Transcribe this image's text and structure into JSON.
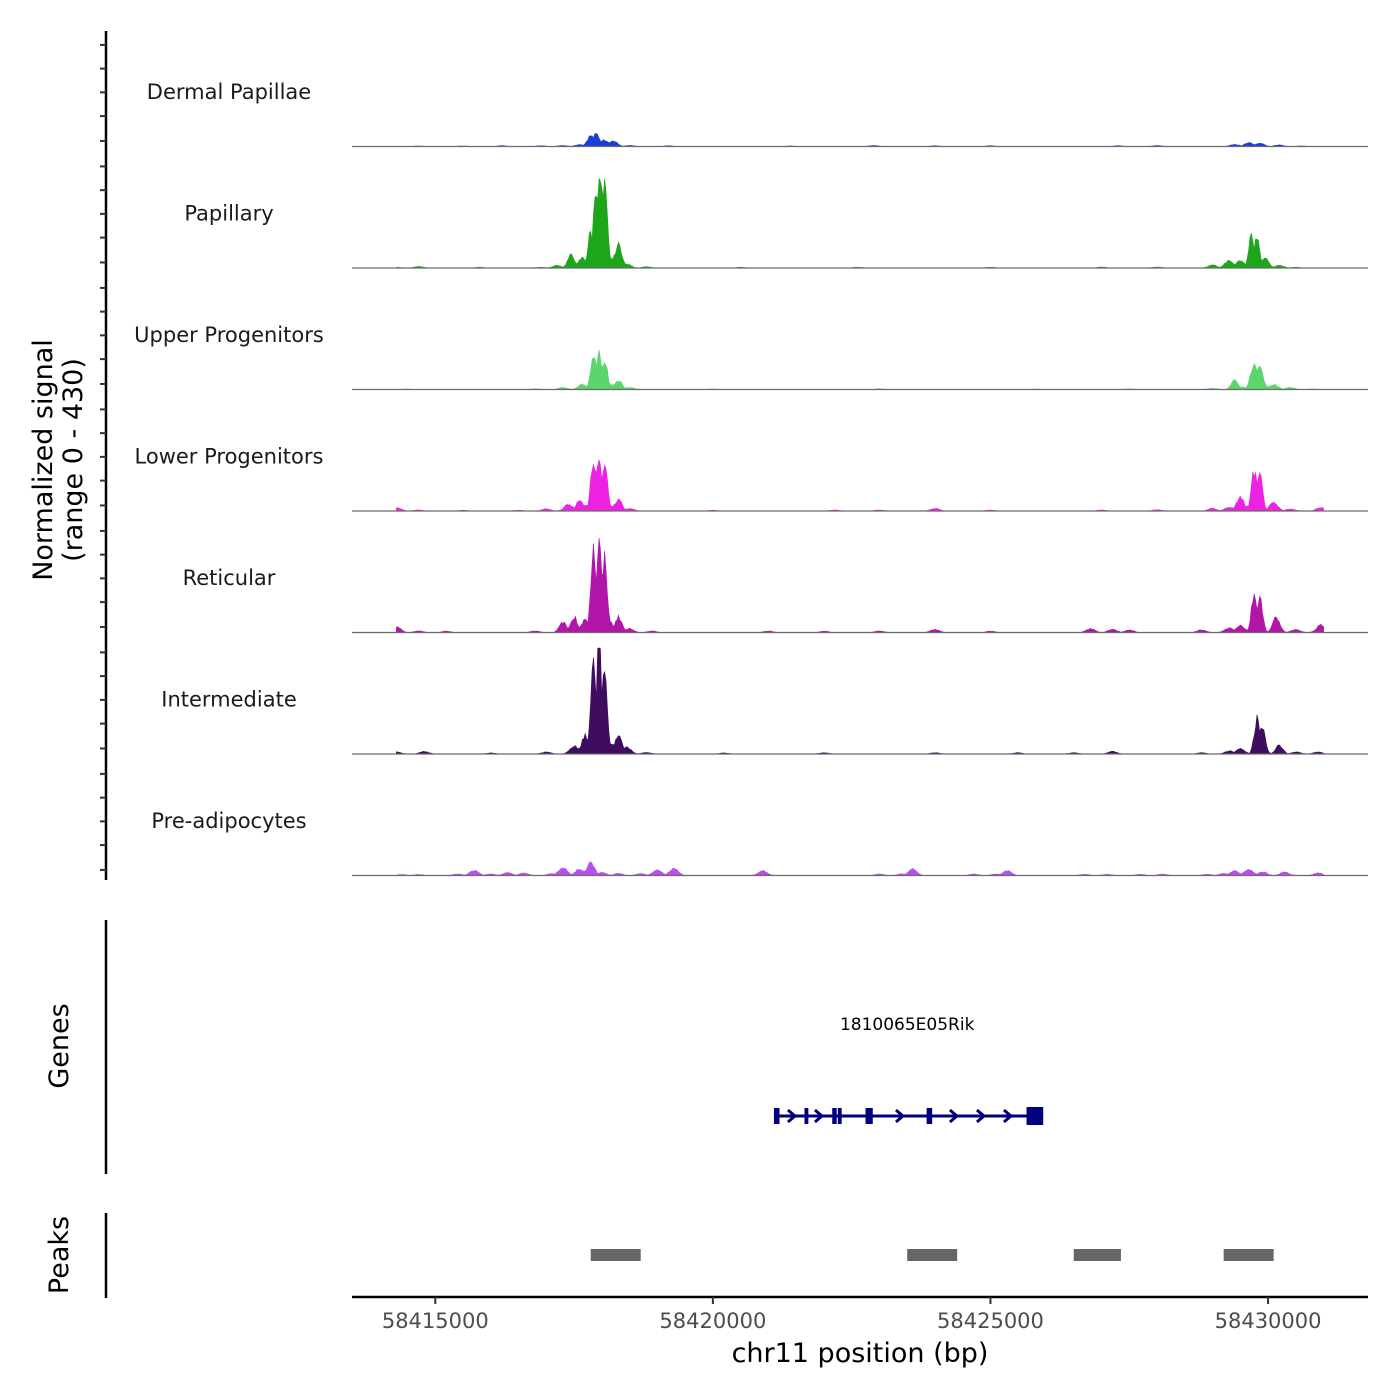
{
  "chart_data": {
    "type": "area",
    "title": "",
    "xlabel": "chr11 position (bp)",
    "ylabel": "Normalized signal\n(range 0 - 430)",
    "ylabel_lines": [
      "Normalized signal",
      "(range 0 - 430)"
    ],
    "ylim": [
      0,
      430
    ],
    "xlim": [
      58413500,
      58431800
    ],
    "x_ticks": [
      58415000,
      58420000,
      58425000,
      58430000
    ],
    "x_tick_labels": [
      "58415000",
      "58420000",
      "58425000",
      "58430000"
    ],
    "grid": false,
    "series": [
      {
        "name": "Dermal Papillae",
        "color": "#1a3fd6",
        "peaks": [
          [
            58414700,
            2
          ],
          [
            58415500,
            2
          ],
          [
            58416200,
            3
          ],
          [
            58416900,
            3
          ],
          [
            58417300,
            4
          ],
          [
            58417600,
            8
          ],
          [
            58417800,
            42
          ],
          [
            58417900,
            48
          ],
          [
            58418050,
            26
          ],
          [
            58418200,
            22
          ],
          [
            58418500,
            4
          ],
          [
            58419200,
            3
          ],
          [
            58421400,
            2
          ],
          [
            58422900,
            4
          ],
          [
            58424000,
            3
          ],
          [
            58425000,
            3
          ],
          [
            58427300,
            3
          ],
          [
            58428000,
            4
          ],
          [
            58429400,
            8
          ],
          [
            58429650,
            15
          ],
          [
            58429850,
            14
          ],
          [
            58430200,
            6
          ],
          [
            58430600,
            2
          ]
        ]
      },
      {
        "name": "Papillary",
        "color": "#1ea61a",
        "peaks": [
          [
            58414300,
            3
          ],
          [
            58414700,
            6
          ],
          [
            58415800,
            3
          ],
          [
            58416900,
            3
          ],
          [
            58417200,
            10
          ],
          [
            58417450,
            50
          ],
          [
            58417650,
            40
          ],
          [
            58417800,
            140
          ],
          [
            58417900,
            330
          ],
          [
            58417970,
            345
          ],
          [
            58418050,
            310
          ],
          [
            58418170,
            40
          ],
          [
            58418300,
            90
          ],
          [
            58418450,
            15
          ],
          [
            58418800,
            5
          ],
          [
            58420500,
            3
          ],
          [
            58422600,
            3
          ],
          [
            58425000,
            3
          ],
          [
            58427000,
            4
          ],
          [
            58428000,
            4
          ],
          [
            58429000,
            12
          ],
          [
            58429300,
            28
          ],
          [
            58429500,
            30
          ],
          [
            58429700,
            120
          ],
          [
            58429800,
            120
          ],
          [
            58429950,
            40
          ],
          [
            58430200,
            10
          ],
          [
            58430500,
            3
          ]
        ]
      },
      {
        "name": "Upper Progenitors",
        "color": "#5bd66c",
        "peaks": [
          [
            58414500,
            2
          ],
          [
            58416800,
            3
          ],
          [
            58417300,
            8
          ],
          [
            58417650,
            20
          ],
          [
            58417850,
            130
          ],
          [
            58417950,
            140
          ],
          [
            58418050,
            120
          ],
          [
            58418150,
            20
          ],
          [
            58418300,
            35
          ],
          [
            58418500,
            8
          ],
          [
            58420000,
            2
          ],
          [
            58423000,
            3
          ],
          [
            58425800,
            2
          ],
          [
            58427500,
            3
          ],
          [
            58429000,
            5
          ],
          [
            58429400,
            35
          ],
          [
            58429550,
            10
          ],
          [
            58429750,
            95
          ],
          [
            58429850,
            85
          ],
          [
            58430100,
            20
          ],
          [
            58430400,
            8
          ],
          [
            58430800,
            2
          ]
        ]
      },
      {
        "name": "Lower Progenitors",
        "color": "#ee22e3",
        "peaks": [
          [
            58414300,
            14
          ],
          [
            58414700,
            4
          ],
          [
            58415500,
            3
          ],
          [
            58416500,
            3
          ],
          [
            58417000,
            8
          ],
          [
            58417400,
            25
          ],
          [
            58417600,
            40
          ],
          [
            58417750,
            25
          ],
          [
            58417850,
            210
          ],
          [
            58417950,
            220
          ],
          [
            58418050,
            180
          ],
          [
            58418150,
            20
          ],
          [
            58418300,
            45
          ],
          [
            58418500,
            10
          ],
          [
            58420000,
            3
          ],
          [
            58422200,
            4
          ],
          [
            58423000,
            4
          ],
          [
            58424000,
            10
          ],
          [
            58425000,
            4
          ],
          [
            58427000,
            4
          ],
          [
            58428000,
            5
          ],
          [
            58429000,
            10
          ],
          [
            58429300,
            15
          ],
          [
            58429500,
            55
          ],
          [
            58429650,
            20
          ],
          [
            58429750,
            155
          ],
          [
            58429850,
            140
          ],
          [
            58430100,
            30
          ],
          [
            58430400,
            8
          ],
          [
            58430950,
            14
          ]
        ]
      },
      {
        "name": "Reticular",
        "color": "#b116a8",
        "peaks": [
          [
            58414300,
            22
          ],
          [
            58414700,
            6
          ],
          [
            58415200,
            5
          ],
          [
            58416800,
            6
          ],
          [
            58417300,
            40
          ],
          [
            58417500,
            60
          ],
          [
            58417700,
            55
          ],
          [
            58417850,
            320
          ],
          [
            58417950,
            340
          ],
          [
            58418050,
            280
          ],
          [
            58418150,
            40
          ],
          [
            58418300,
            60
          ],
          [
            58418500,
            15
          ],
          [
            58418900,
            6
          ],
          [
            58421000,
            6
          ],
          [
            58422000,
            5
          ],
          [
            58423000,
            6
          ],
          [
            58424000,
            12
          ],
          [
            58425000,
            5
          ],
          [
            58426800,
            15
          ],
          [
            58427200,
            12
          ],
          [
            58427500,
            10
          ],
          [
            58428800,
            10
          ],
          [
            58429300,
            18
          ],
          [
            58429500,
            28
          ],
          [
            58429750,
            150
          ],
          [
            58429850,
            145
          ],
          [
            58430150,
            60
          ],
          [
            58430500,
            12
          ],
          [
            58430950,
            28
          ]
        ]
      },
      {
        "name": "Intermediate",
        "color": "#3f0d5e",
        "peaks": [
          [
            58414300,
            8
          ],
          [
            58414800,
            10
          ],
          [
            58416000,
            4
          ],
          [
            58417000,
            8
          ],
          [
            58417500,
            30
          ],
          [
            58417700,
            70
          ],
          [
            58417850,
            380
          ],
          [
            58417950,
            410
          ],
          [
            58418050,
            320
          ],
          [
            58418200,
            40
          ],
          [
            58418300,
            70
          ],
          [
            58418450,
            25
          ],
          [
            58418800,
            6
          ],
          [
            58420200,
            4
          ],
          [
            58422000,
            5
          ],
          [
            58424000,
            5
          ],
          [
            58425500,
            5
          ],
          [
            58426500,
            5
          ],
          [
            58427200,
            10
          ],
          [
            58428800,
            5
          ],
          [
            58429300,
            12
          ],
          [
            58429500,
            20
          ],
          [
            58429800,
            135
          ],
          [
            58429900,
            110
          ],
          [
            58430200,
            35
          ],
          [
            58430500,
            8
          ],
          [
            58430900,
            8
          ]
        ]
      },
      {
        "name": "Pre-adipocytes",
        "color": "#b94ef0",
        "peaks": [
          [
            58414400,
            4
          ],
          [
            58414700,
            4
          ],
          [
            58415400,
            6
          ],
          [
            58415700,
            20
          ],
          [
            58416000,
            6
          ],
          [
            58416300,
            12
          ],
          [
            58416600,
            10
          ],
          [
            58417100,
            8
          ],
          [
            58417300,
            30
          ],
          [
            58417600,
            25
          ],
          [
            58417800,
            55
          ],
          [
            58418000,
            12
          ],
          [
            58418300,
            8
          ],
          [
            58418700,
            8
          ],
          [
            58419000,
            22
          ],
          [
            58419300,
            28
          ],
          [
            58420900,
            18
          ],
          [
            58423000,
            6
          ],
          [
            58423400,
            6
          ],
          [
            58423600,
            25
          ],
          [
            58424700,
            6
          ],
          [
            58425100,
            6
          ],
          [
            58425300,
            18
          ],
          [
            58426700,
            5
          ],
          [
            58427100,
            5
          ],
          [
            58427700,
            5
          ],
          [
            58428100,
            5
          ],
          [
            58428900,
            5
          ],
          [
            58429200,
            8
          ],
          [
            58429400,
            18
          ],
          [
            58429650,
            25
          ],
          [
            58429900,
            15
          ],
          [
            58430300,
            14
          ],
          [
            58430900,
            10
          ]
        ]
      }
    ],
    "genes": {
      "title": "Genes",
      "color": "#000080",
      "items": [
        {
          "name": "1810065E05Rik",
          "strand": "+",
          "start": 58421100,
          "end": 58425900,
          "exons": [
            [
              58421100,
              58421200
            ],
            [
              58421650,
              58421720
            ],
            [
              58422150,
              58422230
            ],
            [
              58422250,
              58422320
            ],
            [
              58422750,
              58422880
            ],
            [
              58423850,
              58423950
            ],
            [
              58425650,
              58425950
            ]
          ]
        }
      ]
    },
    "peaks_track": {
      "title": "Peaks",
      "color": "#666666",
      "regions": [
        [
          58417800,
          58418700
        ],
        [
          58423500,
          58424400
        ],
        [
          58426500,
          58427350
        ],
        [
          58429200,
          58430100
        ]
      ]
    }
  }
}
